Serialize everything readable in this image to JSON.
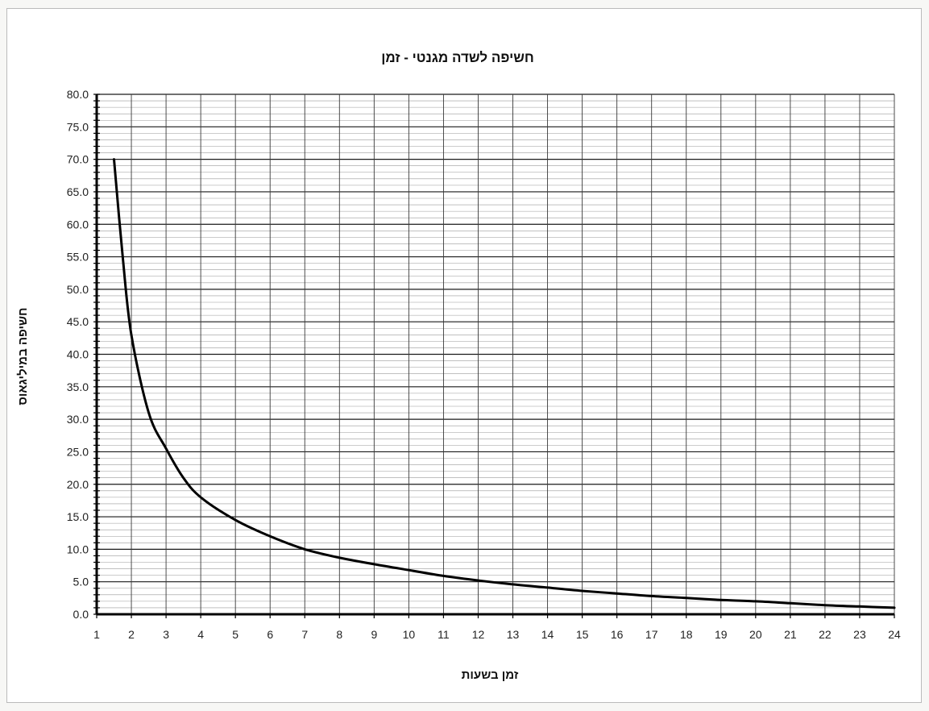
{
  "chart_data": {
    "type": "line",
    "title": "חשיפה לשדה מגנטי - זמן",
    "xlabel": "זמן בשעות",
    "ylabel": "חשיפה במיליגאוס",
    "xlim": [
      1,
      24
    ],
    "ylim": [
      0,
      80
    ],
    "x_ticks": [
      "1",
      "2",
      "3",
      "4",
      "5",
      "6",
      "7",
      "8",
      "9",
      "10",
      "11",
      "12",
      "13",
      "14",
      "15",
      "16",
      "17",
      "18",
      "19",
      "20",
      "21",
      "22",
      "23",
      "24"
    ],
    "y_ticks": [
      "0.0",
      "5.0",
      "10.0",
      "15.0",
      "20.0",
      "25.0",
      "30.0",
      "35.0",
      "40.0",
      "45.0",
      "50.0",
      "55.0",
      "60.0",
      "65.0",
      "70.0",
      "75.0",
      "80.0"
    ],
    "grid": true,
    "series": [
      {
        "x": [
          1.5,
          1.75,
          2,
          2.5,
          3,
          3.5,
          4,
          5,
          6,
          7,
          8,
          9,
          10,
          11,
          12,
          13,
          14,
          15,
          16,
          17,
          18,
          19,
          20,
          21,
          22,
          23,
          24
        ],
        "values": [
          70,
          55,
          43,
          31,
          25.5,
          21,
          18,
          14.5,
          12,
          10,
          8.7,
          7.7,
          6.8,
          5.9,
          5.2,
          4.6,
          4.1,
          3.6,
          3.2,
          2.8,
          2.5,
          2.2,
          2.0,
          1.7,
          1.4,
          1.2,
          1.0
        ]
      }
    ]
  }
}
